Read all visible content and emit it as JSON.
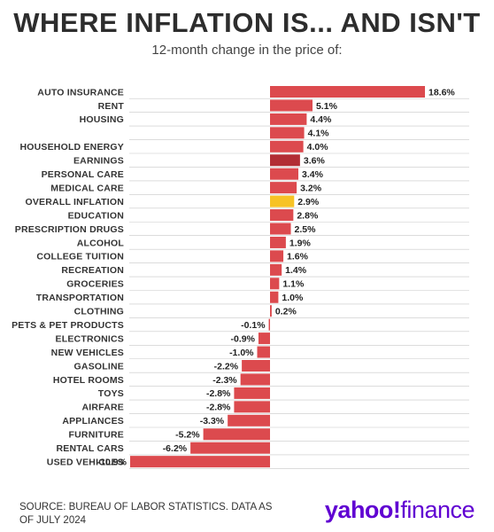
{
  "header": {
    "title": "WHERE INFLATION IS... AND ISN'T",
    "subtitle": "12-month change in the price of:"
  },
  "footer": {
    "source": "SOURCE: BUREAU OF LABOR STATISTICS. DATA AS OF JULY 2024",
    "logo_part1": "yahoo!",
    "logo_part2": "finance"
  },
  "colors": {
    "bar": "#dc4a4e",
    "highlight_dark": "#b22d34",
    "highlight_yellow": "#f7c325",
    "grid": "#c8c8c8"
  },
  "chart_data": {
    "type": "bar",
    "orientation": "horizontal",
    "categories": [
      "AUTO INSURANCE",
      "RENT",
      "HOUSING",
      "",
      "HOUSEHOLD ENERGY",
      "EARNINGS",
      "PERSONAL CARE",
      "MEDICAL CARE",
      "OVERALL INFLATION",
      "EDUCATION",
      "PRESCRIPTION DRUGS",
      "ALCOHOL",
      "COLLEGE TUITION",
      "RECREATION",
      "GROCERIES",
      "TRANSPORTATION",
      "CLOTHING",
      "PETS & PET PRODUCTS",
      "ELECTRONICS",
      "NEW VEHICLES",
      "GASOLINE",
      "HOTEL ROOMS",
      "TOYS",
      "AIRFARE",
      "APPLIANCES",
      "FURNITURE",
      "RENTAL CARS",
      "USED VEHICLES"
    ],
    "values": [
      18.6,
      5.1,
      4.4,
      4.1,
      4.0,
      3.6,
      3.4,
      3.2,
      2.9,
      2.8,
      2.5,
      1.9,
      1.6,
      1.4,
      1.1,
      1.0,
      0.2,
      -0.1,
      -0.9,
      -1.0,
      -2.2,
      -2.3,
      -2.8,
      -2.8,
      -3.3,
      -5.2,
      -6.2,
      -10.9
    ],
    "value_labels": [
      "18.6%",
      "5.1%",
      "4.4%",
      "4.1%",
      "4.0%",
      "3.6%",
      "3.4%",
      "3.2%",
      "2.9%",
      "2.8%",
      "2.5%",
      "1.9%",
      "1.6%",
      "1.4%",
      "1.1%",
      "1.0%",
      "0.2%",
      "-0.1%",
      "-0.9%",
      "-1.0%",
      "-2.2%",
      "-2.3%",
      "-2.8%",
      "-2.8%",
      "-3.3%",
      "-5.2%",
      "-6.2%",
      "-10.9%"
    ],
    "highlights": {
      "EARNINGS": "dark",
      "OVERALL INFLATION": "yellow"
    },
    "xlim": [
      -10.9,
      18.6
    ],
    "grid": true
  }
}
